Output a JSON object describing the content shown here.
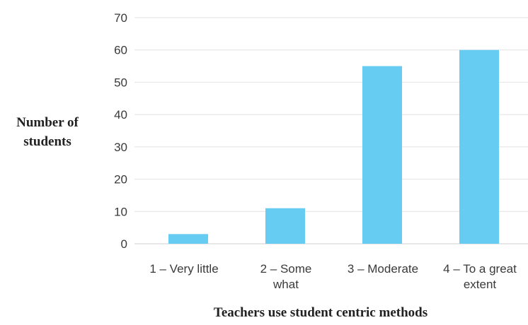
{
  "chart_data": {
    "type": "bar",
    "categories": [
      "1 – Very little",
      "2 – Some\nwhat",
      "3 – Moderate",
      "4 – To a great\nextent"
    ],
    "values": [
      3,
      11,
      55,
      60
    ],
    "xlabel": "Teachers use student centric methods",
    "ylabel": "Number of\nstudents",
    "ylim": [
      0,
      70
    ],
    "yticks": [
      0,
      10,
      20,
      30,
      40,
      50,
      60,
      70
    ],
    "grid": true,
    "legend": "none",
    "colors": {
      "bar": "#66CCF2",
      "grid": "#e2e2e2",
      "tick_text": "#3a3a3a"
    }
  }
}
